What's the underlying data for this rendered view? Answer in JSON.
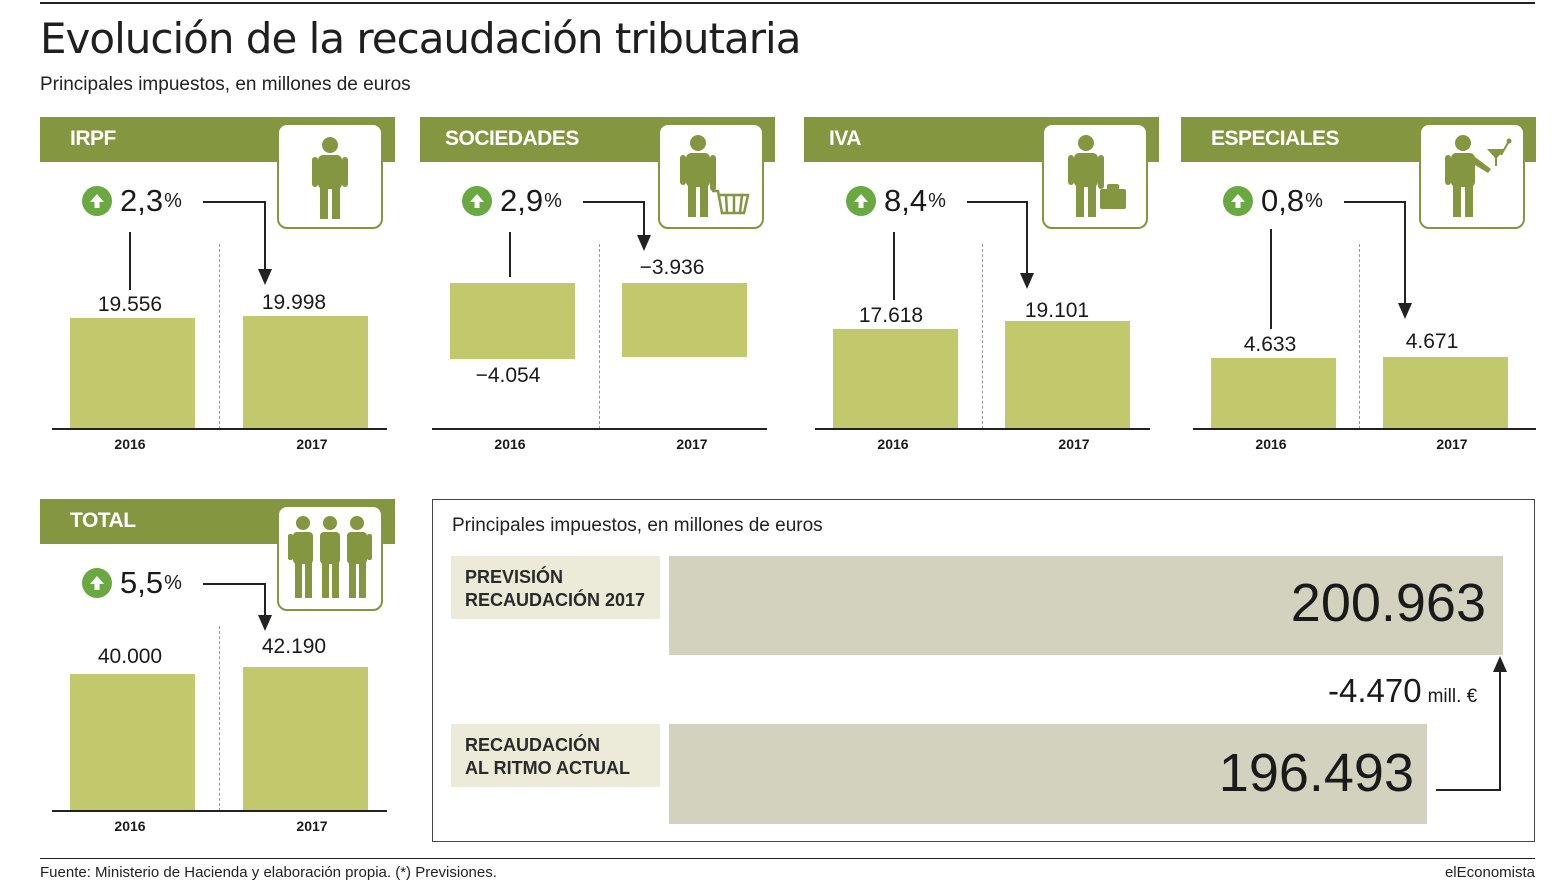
{
  "header": {
    "title": "Evolución de la recaudación tributaria",
    "subtitle": "Principales impuestos, en millones de euros"
  },
  "colors": {
    "header_green": "#84963f",
    "bar_green": "#c2c96c",
    "arrow_green": "#6aa842",
    "box_beige": "#d3d2bf",
    "label_beige": "#ecead8"
  },
  "panels": [
    {
      "label": "IRPF",
      "icon": "person-icon",
      "change": "2,3",
      "pct": "%",
      "v2016": "19.556",
      "v2017": "19.998",
      "y2016": "2016",
      "y2017": "2017"
    },
    {
      "label": "SOCIEDADES",
      "icon": "person-with-basket-icon",
      "change": "2,9",
      "pct": "%",
      "v2016": "−4.054",
      "v2017": "−3.936",
      "y2016": "2016",
      "y2017": "2017"
    },
    {
      "label": "IVA",
      "icon": "person-with-briefcase-icon",
      "change": "8,4",
      "pct": "%",
      "v2016": "17.618",
      "v2017": "19.101",
      "y2016": "2016",
      "y2017": "2017"
    },
    {
      "label": "ESPECIALES",
      "icon": "person-with-cocktail-icon",
      "change": "0,8",
      "pct": "%",
      "v2016": "4.633",
      "v2017": "4.671",
      "y2016": "2016",
      "y2017": "2017"
    },
    {
      "label": "TOTAL",
      "icon": "group-of-people-icon",
      "change": "5,5",
      "pct": "%",
      "v2016": "40.000",
      "v2017": "42.190",
      "y2016": "2016",
      "y2017": "2017"
    }
  ],
  "chart_data": [
    {
      "type": "bar",
      "title": "IRPF",
      "categories": [
        "2016",
        "2017"
      ],
      "values": [
        19556,
        19998
      ],
      "change_pct": 2.3
    },
    {
      "type": "bar",
      "title": "SOCIEDADES",
      "categories": [
        "2016",
        "2017"
      ],
      "values": [
        -4054,
        -3936
      ],
      "change_pct": 2.9
    },
    {
      "type": "bar",
      "title": "IVA",
      "categories": [
        "2016",
        "2017"
      ],
      "values": [
        17618,
        19101
      ],
      "change_pct": 8.4
    },
    {
      "type": "bar",
      "title": "ESPECIALES",
      "categories": [
        "2016",
        "2017"
      ],
      "values": [
        4633,
        4671
      ],
      "change_pct": 0.8
    },
    {
      "type": "bar",
      "title": "TOTAL",
      "categories": [
        "2016",
        "2017"
      ],
      "values": [
        40000,
        42190
      ],
      "change_pct": 5.5
    },
    {
      "type": "bar",
      "title": "Principales impuestos, en millones de euros",
      "categories": [
        "PREVISIÓN RECAUDACIÓN 2017",
        "RECAUDACIÓN AL RITMO ACTUAL"
      ],
      "values": [
        200963,
        196493
      ],
      "difference": -4470
    }
  ],
  "summary": {
    "subtitle": "Principales impuestos, en millones de euros",
    "forecast_line1": "PREVISIÓN",
    "forecast_line2": "RECAUDACIÓN 2017",
    "forecast_value": "200.963",
    "actual_line1": "RECAUDACIÓN",
    "actual_line2": "AL RITMO ACTUAL",
    "actual_value": "196.493",
    "diff_value": "-4.470",
    "diff_unit": "mill. €"
  },
  "footer": {
    "source": "Fuente: Ministerio de Hacienda y elaboración propia. (*) Previsiones.",
    "brand": "elEconomista"
  }
}
